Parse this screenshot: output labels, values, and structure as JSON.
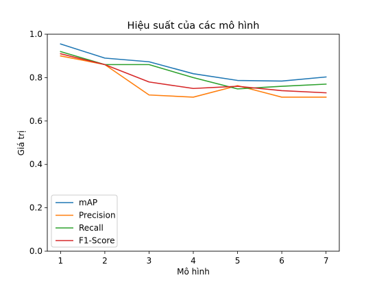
{
  "chart_data": {
    "type": "line",
    "title": "Hiệu suất của các mô hình",
    "xlabel": "Mô hình",
    "ylabel": "Giá trị",
    "x": [
      1,
      2,
      3,
      4,
      5,
      6,
      7
    ],
    "xlim": [
      0.7,
      7.3
    ],
    "ylim": [
      0.0,
      1.0
    ],
    "xticks": [
      "1",
      "2",
      "3",
      "4",
      "5",
      "6",
      "7"
    ],
    "yticks": [
      "0.0",
      "0.2",
      "0.4",
      "0.6",
      "0.8",
      "1.0"
    ],
    "grid": false,
    "legend_position": "lower-left",
    "series": [
      {
        "name": "mAP",
        "color": "#1f77b4",
        "values": [
          0.955,
          0.89,
          0.873,
          0.818,
          0.787,
          0.784,
          0.803
        ]
      },
      {
        "name": "Precision",
        "color": "#ff7f0e",
        "values": [
          0.9,
          0.86,
          0.72,
          0.71,
          0.763,
          0.71,
          0.71
        ]
      },
      {
        "name": "Recall",
        "color": "#2ca02c",
        "values": [
          0.92,
          0.86,
          0.86,
          0.8,
          0.748,
          0.76,
          0.77
        ]
      },
      {
        "name": "F1-Score",
        "color": "#d62728",
        "values": [
          0.91,
          0.86,
          0.78,
          0.75,
          0.76,
          0.74,
          0.73
        ]
      }
    ]
  }
}
